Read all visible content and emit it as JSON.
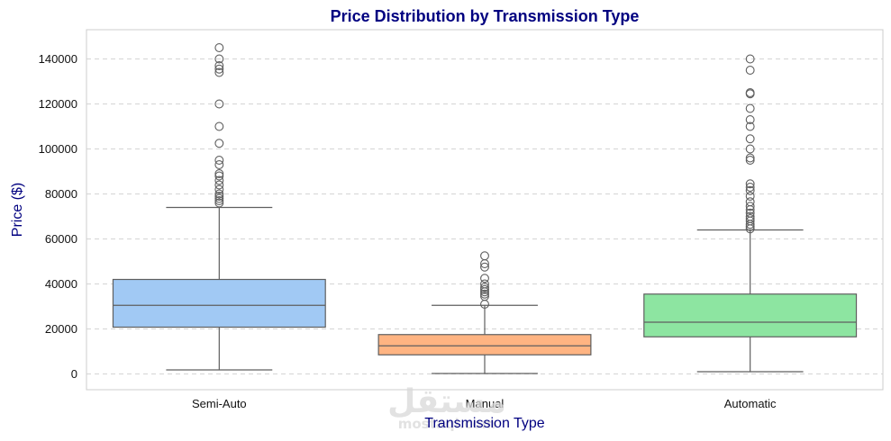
{
  "chart_data": {
    "type": "box",
    "title": "Price Distribution by Transmission Type",
    "xlabel": "Transmission Type",
    "ylabel": "Price ($)",
    "ylim": [
      -7000,
      153000
    ],
    "yticks": [
      0,
      20000,
      40000,
      60000,
      80000,
      100000,
      120000,
      140000
    ],
    "ytick_labels": [
      "0",
      "20000",
      "40000",
      "60000",
      "80000",
      "100000",
      "120000",
      "140000"
    ],
    "grid": "y-dashed",
    "categories": [
      "Semi-Auto",
      "Manual",
      "Automatic"
    ],
    "series": [
      {
        "category": "Semi-Auto",
        "color": "#a1c9f4",
        "whisker_low": 1800,
        "q1": 20800,
        "median": 30500,
        "q3": 42000,
        "whisker_high": 74000,
        "outliers": [
          76000,
          77000,
          78000,
          79000,
          80000,
          82000,
          84000,
          86000,
          88000,
          89000,
          93000,
          95000,
          102500,
          110000,
          120000,
          134000,
          135500,
          137000,
          140000,
          145000
        ]
      },
      {
        "category": "Manual",
        "color": "#ffb482",
        "whisker_low": 200,
        "q1": 8500,
        "median": 12500,
        "q3": 17500,
        "whisker_high": 30500,
        "outliers": [
          31000,
          34500,
          35500,
          36500,
          37500,
          38500,
          40000,
          42500,
          47500,
          49000,
          52500
        ]
      },
      {
        "category": "Automatic",
        "color": "#8de5a1",
        "whisker_low": 1000,
        "q1": 16500,
        "median": 23000,
        "q3": 35500,
        "whisker_high": 64000,
        "outliers": [
          64500,
          65500,
          66500,
          68000,
          69000,
          70000,
          71500,
          73000,
          74500,
          76500,
          79000,
          81500,
          83000,
          84500,
          95000,
          96000,
          100000,
          104500,
          110000,
          113000,
          118000,
          124500,
          125000,
          135000,
          140000
        ]
      }
    ]
  },
  "watermark": {
    "arabic": "مستقل",
    "latin": "mostaql.com"
  }
}
